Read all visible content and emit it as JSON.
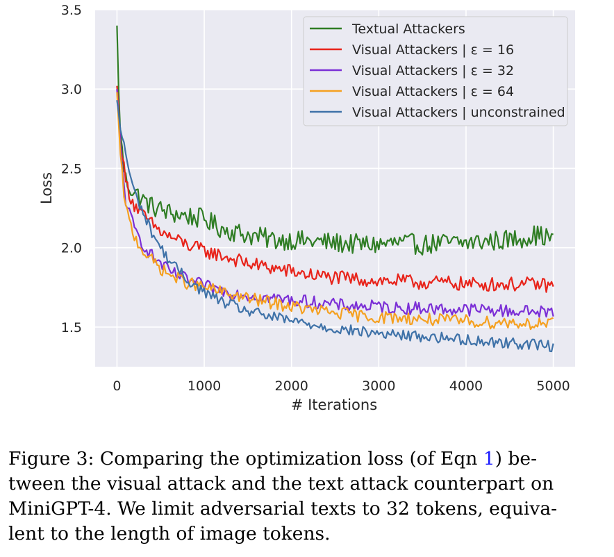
{
  "chart_data": {
    "type": "line",
    "xlabel": "# Iterations",
    "ylabel": "Loss",
    "xlim": [
      -250,
      5250
    ],
    "ylim": [
      1.25,
      3.5
    ],
    "xticks": [
      0,
      1000,
      2000,
      3000,
      4000,
      5000
    ],
    "yticks": [
      1.5,
      2.0,
      2.5,
      3.0,
      3.5
    ],
    "xtick_labels": [
      "0",
      "1000",
      "2000",
      "3000",
      "4000",
      "5000"
    ],
    "ytick_labels": [
      "1.5",
      "2.0",
      "2.5",
      "3.0",
      "3.5"
    ],
    "grid": true,
    "legend_position": "top-right",
    "x": [
      0,
      20,
      40,
      60,
      80,
      100,
      150,
      200,
      300,
      400,
      500,
      600,
      800,
      1000,
      1200,
      1500,
      1800,
      2000,
      2200,
      2500,
      2800,
      3000,
      3200,
      3500,
      3800,
      4000,
      4200,
      4500,
      4800,
      5000
    ],
    "series": [
      {
        "name": "Textual Attackers",
        "color": "#2f7d24",
        "values": [
          3.4,
          2.95,
          2.75,
          2.6,
          2.5,
          2.43,
          2.38,
          2.35,
          2.3,
          2.26,
          2.24,
          2.22,
          2.2,
          2.18,
          2.12,
          2.08,
          2.05,
          2.05,
          2.04,
          2.03,
          2.02,
          2.02,
          2.03,
          2.02,
          2.03,
          2.03,
          2.04,
          2.05,
          2.08,
          2.06
        ]
      },
      {
        "name": "Visual Attackers | ε = 16",
        "color": "#e8241b",
        "values": [
          3.02,
          2.85,
          2.7,
          2.6,
          2.5,
          2.42,
          2.33,
          2.27,
          2.2,
          2.15,
          2.1,
          2.07,
          2.02,
          1.98,
          1.95,
          1.9,
          1.87,
          1.85,
          1.83,
          1.81,
          1.8,
          1.79,
          1.79,
          1.78,
          1.78,
          1.77,
          1.77,
          1.77,
          1.77,
          1.76
        ]
      },
      {
        "name": "Visual Attackers | ε = 32",
        "color": "#7b2fd6",
        "values": [
          3.0,
          2.8,
          2.63,
          2.5,
          2.4,
          2.3,
          2.2,
          2.12,
          2.02,
          1.95,
          1.9,
          1.85,
          1.8,
          1.76,
          1.73,
          1.7,
          1.68,
          1.67,
          1.66,
          1.64,
          1.63,
          1.63,
          1.62,
          1.62,
          1.61,
          1.61,
          1.61,
          1.6,
          1.6,
          1.59
        ]
      },
      {
        "name": "Visual Attackers | ε = 64",
        "color": "#f5a020",
        "values": [
          2.98,
          2.75,
          2.58,
          2.45,
          2.35,
          2.25,
          2.15,
          2.07,
          1.98,
          1.92,
          1.87,
          1.83,
          1.78,
          1.75,
          1.72,
          1.68,
          1.65,
          1.63,
          1.61,
          1.59,
          1.57,
          1.56,
          1.56,
          1.55,
          1.54,
          1.54,
          1.53,
          1.53,
          1.52,
          1.52
        ]
      },
      {
        "name": "Visual Attackers | unconstrained",
        "color": "#3f72a8",
        "values": [
          2.93,
          2.82,
          2.75,
          2.7,
          2.65,
          2.6,
          2.45,
          2.35,
          2.22,
          2.1,
          2.0,
          1.92,
          1.8,
          1.72,
          1.66,
          1.6,
          1.56,
          1.54,
          1.52,
          1.49,
          1.47,
          1.46,
          1.45,
          1.44,
          1.43,
          1.42,
          1.41,
          1.4,
          1.39,
          1.38
        ]
      }
    ]
  },
  "caption": {
    "line1_pre": "Figure 3:  Comparing the optimization loss (of Eqn ",
    "ref": "1",
    "line1_post": ") be-",
    "line2": "tween the visual attack and the text attack counterpart on",
    "line3": "MiniGPT-4. We limit adversarial texts to 32 tokens, equiva-",
    "line4": "lent to the length of image tokens."
  }
}
